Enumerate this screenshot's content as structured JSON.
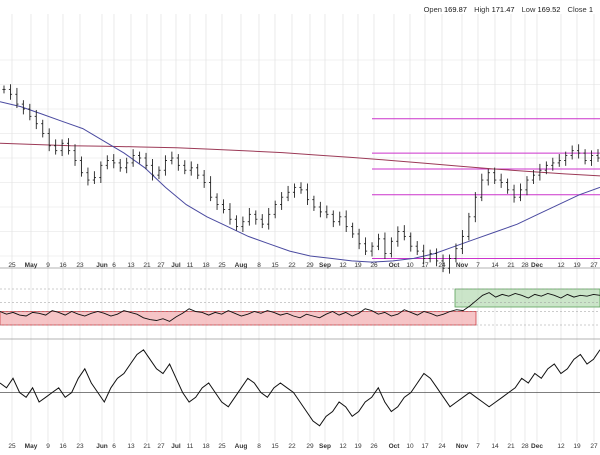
{
  "header": {
    "open_label": "Open",
    "open_value": "169.87",
    "high_label": "High",
    "high_value": "171.47",
    "low_label": "Low",
    "low_value": "169.52",
    "close_label": "Close",
    "close_value": "1"
  },
  "colors": {
    "price_bar": "#222222",
    "ma_50": "#4a4aa0",
    "ma_200": "#9c3a57",
    "level_line": "#cc33cc",
    "rsi_line": "#111111",
    "overbought_zone_fill": "#b9dcb7",
    "oversold_zone_fill": "#f3b0b3",
    "grid": "#e2e2e2"
  },
  "chart_data": [
    {
      "panel": "price",
      "type": "ohlc",
      "x_axis_labels": [
        "25",
        "May",
        "9",
        "16",
        "23",
        "Jun",
        "6",
        "13",
        "21",
        "27",
        "Jul",
        "11",
        "18",
        "25",
        "Aug",
        "8",
        "15",
        "22",
        "29",
        "Sep",
        "12",
        "19",
        "26",
        "Oct",
        "10",
        "17",
        "24",
        "Nov",
        "7",
        "14",
        "21",
        "28",
        "Dec",
        "12",
        "19",
        "27"
      ],
      "y_range": [
        100,
        180
      ],
      "series": [
        {
          "kind": "price",
          "close": [
            168,
            166,
            162,
            160,
            157,
            154,
            150,
            145,
            143,
            146,
            143,
            139,
            134,
            131,
            132,
            137,
            139,
            138,
            136,
            138,
            141,
            140,
            137,
            133,
            135,
            139,
            140,
            137,
            135,
            136,
            133,
            130,
            124,
            121,
            119,
            115,
            112,
            114,
            117,
            115,
            113,
            117,
            121,
            124,
            126,
            128,
            127,
            123,
            120,
            118,
            117,
            114,
            116,
            112,
            109,
            105,
            102,
            104,
            107,
            101,
            106,
            110,
            108,
            104,
            102,
            99,
            101,
            98,
            95,
            99,
            103,
            108,
            116,
            124,
            131,
            134,
            131,
            130,
            127,
            124,
            127,
            131,
            133,
            135,
            137,
            138,
            139,
            141,
            143,
            142,
            139,
            141,
            140
          ]
        },
        {
          "kind": "moving-average-50",
          "values": [
            163,
            161,
            158,
            155,
            152,
            147,
            142,
            136,
            128,
            121,
            116,
            112,
            108,
            105,
            102,
            100,
            99,
            98,
            97.5,
            98,
            99,
            101,
            104,
            107,
            110,
            113,
            117,
            121,
            125,
            128
          ]
        },
        {
          "kind": "moving-average-200",
          "values": [
            146,
            145.5,
            145,
            144.8,
            144.5,
            144.2,
            143.6,
            142.9,
            142.2,
            141.2,
            140.2,
            139.1,
            137.9,
            136.7,
            135.5,
            134.5,
            133.5,
            132.7
          ]
        }
      ],
      "horizontal_levels": [
        156,
        142,
        135.5,
        125,
        99
      ]
    },
    {
      "panel": "rsi",
      "type": "line",
      "y_range": [
        20,
        80
      ],
      "zones": [
        {
          "label": "oversold",
          "start_label": "25",
          "end_label": "Nov",
          "y_range": [
            30,
            45
          ]
        },
        {
          "label": "overbought",
          "start_label": "Nov",
          "end_label": "27",
          "y_range": [
            50,
            70
          ]
        }
      ],
      "values": [
        45,
        42,
        44,
        41,
        40,
        44,
        43,
        41,
        46,
        44,
        41,
        45,
        42,
        40,
        43,
        45,
        43,
        40,
        42,
        46,
        44,
        42,
        38,
        36,
        35,
        37,
        34,
        39,
        43,
        48,
        45,
        44,
        41,
        44,
        42,
        46,
        43,
        40,
        42,
        45,
        43,
        46,
        44,
        41,
        43,
        40,
        38,
        42,
        40,
        38,
        42,
        45,
        41,
        44,
        40,
        43,
        48,
        46,
        42,
        44,
        40,
        42,
        47,
        44,
        41,
        45,
        43,
        40,
        42,
        45,
        47,
        46,
        51,
        57,
        63,
        66,
        61,
        64,
        62,
        65,
        63,
        60,
        64,
        62,
        65,
        63,
        60,
        64,
        61,
        63,
        62,
        64,
        63
      ]
    },
    {
      "panel": "oscillator",
      "type": "line",
      "y_range": [
        -10,
        10
      ],
      "baseline": 0,
      "values": [
        2,
        1,
        3,
        0,
        -1,
        1,
        -2,
        -1,
        0,
        1,
        -1,
        0,
        3,
        5,
        2,
        0,
        -2,
        1,
        3,
        4,
        6,
        8,
        9,
        7,
        5,
        4,
        6,
        3,
        0,
        -2,
        -1,
        1,
        2,
        0,
        -2,
        -3,
        -1,
        1,
        3,
        2,
        0,
        -1,
        1,
        2,
        1,
        0,
        -2,
        -4,
        -6,
        -7,
        -5,
        -4,
        -2,
        -3,
        -5,
        -4,
        -2,
        -1,
        1,
        -2,
        -4,
        -3,
        -1,
        0,
        2,
        4,
        3,
        1,
        -1,
        -3,
        -2,
        -1,
        0,
        -1,
        -2,
        -3,
        -2,
        -1,
        0,
        1,
        3,
        2,
        4,
        3,
        5,
        6,
        4,
        5,
        7,
        8,
        6,
        7,
        9
      ]
    }
  ]
}
